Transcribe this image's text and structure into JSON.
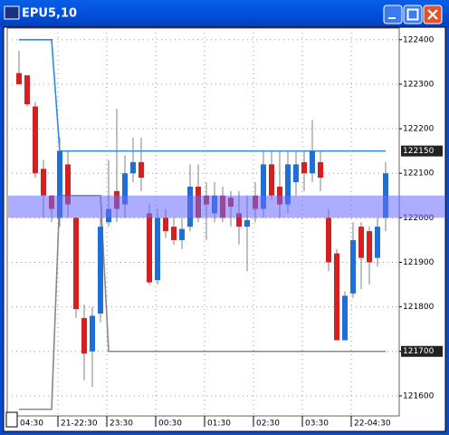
{
  "title": "EPU5,10",
  "chart_data": {
    "type": "candlestick",
    "categories": [
      "04:30",
      null,
      null,
      null,
      null,
      "21-22:30",
      null,
      null,
      null,
      null,
      null,
      "23:30",
      null,
      null,
      null,
      null,
      null,
      "00:30",
      null,
      null,
      null,
      null,
      null,
      "01:30",
      null,
      null,
      null,
      null,
      null,
      "02:30",
      null,
      null,
      null,
      null,
      null,
      "03:30",
      null,
      null,
      null,
      null,
      null,
      "22-04:30",
      null,
      null,
      null,
      null
    ],
    "open": [
      122325,
      122320,
      122250,
      122110,
      122050,
      122000,
      122120,
      122000,
      121775,
      121700,
      121785,
      121990,
      122060,
      122030,
      122100,
      122125,
      122010,
      121860,
      122000,
      121980,
      121950,
      121980,
      122070,
      122050,
      122010,
      122050,
      122045,
      122010,
      121980,
      122050,
      122020,
      122120,
      122070,
      122030,
      122080,
      122125,
      122100,
      122125,
      122000,
      121920,
      121725,
      121830,
      121980,
      121970,
      121910,
      122000
    ],
    "high": [
      122375,
      122320,
      122260,
      122130,
      122050,
      122180,
      122150,
      122000,
      121805,
      121800,
      122000,
      122130,
      122245,
      122140,
      122180,
      122180,
      122030,
      122020,
      122020,
      122000,
      122000,
      122120,
      122120,
      122080,
      122080,
      122070,
      122060,
      122060,
      122050,
      122080,
      122150,
      122150,
      122150,
      122150,
      122150,
      122150,
      122220,
      122150,
      122020,
      121930,
      121835,
      121990,
      121990,
      121980,
      122000,
      122125
    ],
    "low": [
      122300,
      122250,
      122090,
      122000,
      121990,
      121980,
      122000,
      121775,
      121635,
      121620,
      121765,
      121980,
      121990,
      122000,
      122080,
      122060,
      121850,
      121850,
      121955,
      121940,
      121930,
      121970,
      121990,
      121950,
      121990,
      121990,
      121980,
      121940,
      121880,
      121990,
      122000,
      122040,
      122000,
      122010,
      122050,
      122060,
      122080,
      122060,
      121880,
      121725,
      121725,
      121820,
      121840,
      121850,
      121890,
      121970
    ],
    "close": [
      122300,
      122255,
      122100,
      122050,
      122020,
      122150,
      122030,
      121795,
      121695,
      121780,
      121980,
      122020,
      122020,
      122100,
      122125,
      122090,
      121855,
      122000,
      121970,
      121950,
      121975,
      122070,
      122000,
      122030,
      122050,
      122000,
      122025,
      121980,
      121995,
      122020,
      122120,
      122050,
      122030,
      122120,
      122120,
      122100,
      122150,
      122090,
      121900,
      121725,
      121825,
      121950,
      121910,
      121900,
      121980,
      122100
    ],
    "up_color": "#1f6fd6",
    "down_color": "#d42020",
    "lines": [
      {
        "color": "#2a8ae8",
        "values": [
          122400,
          122400,
          122400,
          122400,
          122400,
          122150,
          122150,
          122150,
          122150,
          122150,
          122150,
          122150,
          122150,
          122150,
          122150,
          122150,
          122150,
          122150,
          122150,
          122150,
          122150,
          122150,
          122150,
          122150,
          122150,
          122150,
          122150,
          122150,
          122150,
          122150,
          122150,
          122150,
          122150,
          122150,
          122150,
          122150,
          122150,
          122150,
          122150,
          122150,
          122150,
          122150,
          122150,
          122150,
          122150,
          122150
        ]
      },
      {
        "color": "#888888",
        "values": [
          121570,
          121570,
          121570,
          121570,
          121570,
          122050,
          122050,
          122050,
          122050,
          122050,
          122050,
          121700,
          121700,
          121700,
          121700,
          121700,
          121700,
          121700,
          121700,
          121700,
          121700,
          121700,
          121700,
          121700,
          121700,
          121700,
          121700,
          121700,
          121700,
          121700,
          121700,
          121700,
          121700,
          121700,
          121700,
          121700,
          121700,
          121700,
          121700,
          121700,
          121700,
          121700,
          121700,
          121700,
          121700,
          121700
        ]
      }
    ],
    "band": [
      122000,
      122050
    ],
    "band_color": "#6a6aff",
    "price_labels": [
      122150,
      121700
    ],
    "ylim": [
      121555,
      122426
    ],
    "yticks": [
      121600,
      121700,
      121800,
      121900,
      122000,
      122100,
      122200,
      122300,
      122400
    ],
    "grid": true
  }
}
